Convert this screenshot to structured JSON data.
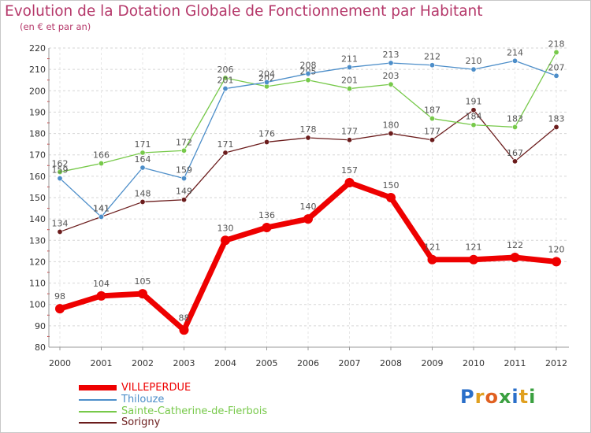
{
  "title": "Evolution de la Dotation Globale de Fonctionnement par Habitant",
  "subtitle": "(en € et par an)",
  "logo": {
    "letters": [
      "P",
      "r",
      "o",
      "x",
      "i",
      "t",
      "i"
    ],
    "colors": [
      "#2a6fc9",
      "#e0a020",
      "#e06020",
      "#3aa040",
      "#2a6fc9",
      "#e0a020",
      "#3aa040"
    ]
  },
  "chart_data": {
    "type": "line",
    "x": [
      "2000",
      "2001",
      "2002",
      "2003",
      "2004",
      "2005",
      "2006",
      "2007",
      "2008",
      "2009",
      "2010",
      "2011",
      "2012"
    ],
    "ylim": [
      80,
      220
    ],
    "yticks": [
      "80",
      "90",
      "100",
      "110",
      "120",
      "130",
      "140",
      "150",
      "160",
      "170",
      "180",
      "190",
      "200",
      "210",
      "220"
    ],
    "grid": "horizontal-dashed",
    "legend_position": "bottom-left",
    "series": [
      {
        "name": "VILLEPERDUE",
        "color": "#ee0000",
        "values": [
          98,
          104,
          105,
          88,
          130,
          136,
          140,
          157,
          150,
          121,
          121,
          122,
          120
        ],
        "labels": [
          "98",
          "104",
          "105",
          "88",
          "130",
          "136",
          "140",
          "157",
          "150",
          "121",
          "121",
          "122",
          "120"
        ]
      },
      {
        "name": "Thilouze",
        "color": "#4d8ec9",
        "values": [
          159,
          141,
          164,
          159,
          201,
          204,
          208,
          211,
          213,
          212,
          210,
          214,
          207
        ],
        "labels": [
          "159",
          "141",
          "164",
          "159",
          "201",
          "204",
          "208",
          "211",
          "213",
          "212",
          "210",
          "214",
          "207"
        ]
      },
      {
        "name": "Sainte-Catherine-de-Fierbois",
        "color": "#77c94a",
        "values": [
          162,
          166,
          171,
          172,
          206,
          202,
          205,
          201,
          203,
          187,
          184,
          183,
          218
        ],
        "labels": [
          "162",
          "166",
          "171",
          "172",
          "206",
          "202",
          "205",
          "201",
          "203",
          "187",
          "184",
          "183",
          "218"
        ]
      },
      {
        "name": "Sorigny",
        "color": "#6b1c1c",
        "values": [
          134,
          141,
          148,
          149,
          171,
          176,
          178,
          177,
          180,
          177,
          191,
          167,
          183
        ],
        "labels": [
          "134",
          "141",
          "148",
          "149",
          "171",
          "176",
          "178",
          "177",
          "180",
          "177",
          "191",
          "167",
          "183"
        ]
      }
    ]
  }
}
